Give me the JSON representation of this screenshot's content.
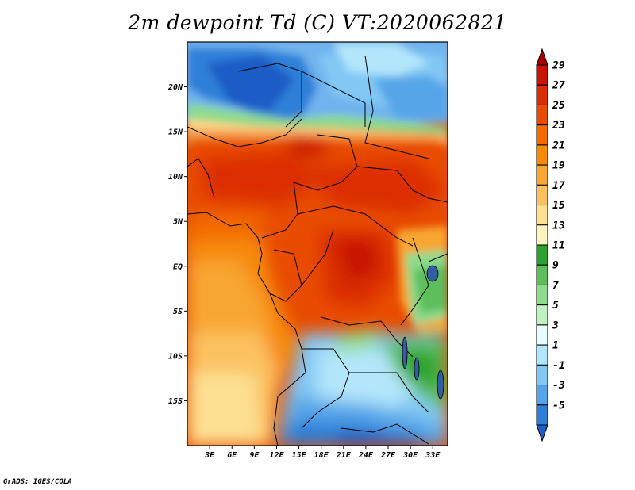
{
  "title": "2m dewpoint Td (C) VT:2020062821",
  "footer": "GrADS: IGES/COLA",
  "map": {
    "lat_range": [
      -20,
      25
    ],
    "lon_range": [
      0,
      35
    ],
    "lat_ticks": [
      {
        "value": 20,
        "label": "20N"
      },
      {
        "value": 15,
        "label": "15N"
      },
      {
        "value": 10,
        "label": "10N"
      },
      {
        "value": 5,
        "label": "5N"
      },
      {
        "value": 0,
        "label": "EQ"
      },
      {
        "value": -5,
        "label": "5S"
      },
      {
        "value": -10,
        "label": "10S"
      },
      {
        "value": -15,
        "label": "15S"
      }
    ],
    "lon_ticks": [
      {
        "value": 3,
        "label": "3E"
      },
      {
        "value": 6,
        "label": "6E"
      },
      {
        "value": 9,
        "label": "9E"
      },
      {
        "value": 12,
        "label": "12E"
      },
      {
        "value": 15,
        "label": "15E"
      },
      {
        "value": 18,
        "label": "18E"
      },
      {
        "value": 21,
        "label": "21E"
      },
      {
        "value": 24,
        "label": "24E"
      },
      {
        "value": 27,
        "label": "27E"
      },
      {
        "value": 30,
        "label": "30E"
      },
      {
        "value": 33,
        "label": "33E"
      }
    ]
  },
  "colorbar": {
    "labels": [
      "29",
      "27",
      "25",
      "23",
      "21",
      "19",
      "17",
      "15",
      "13",
      "11",
      "9",
      "7",
      "5",
      "3",
      "1",
      "-1",
      "-3",
      "-5"
    ],
    "colors": [
      "#a50000",
      "#c81400",
      "#dc2d00",
      "#e84c00",
      "#f26a00",
      "#f78a08",
      "#f8a633",
      "#fbc160",
      "#fde092",
      "#fff3c2",
      "#2ea12e",
      "#5cbf5c",
      "#8edb8e",
      "#c1f0c1",
      "#e8fbff",
      "#b4e6fb",
      "#82c8f4",
      "#56a5e8",
      "#2f7fd8",
      "#1e5cc6"
    ]
  }
}
